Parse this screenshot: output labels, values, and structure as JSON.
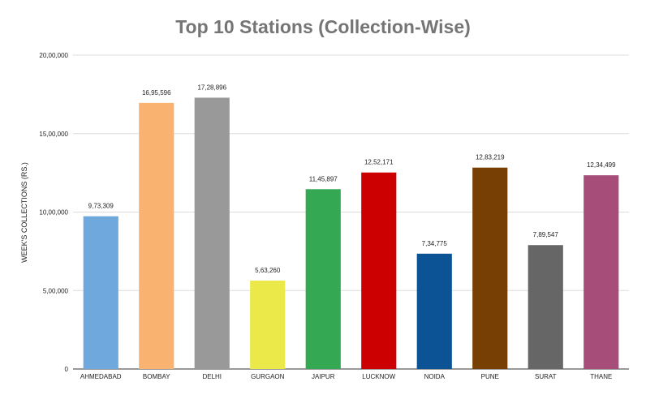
{
  "chart_data": {
    "type": "bar",
    "title": "Top 10 Stations (Collection-Wise)",
    "xlabel": "",
    "ylabel": "WEEK'S COLLECTIONS (RS.)",
    "ylim": [
      0,
      2000000
    ],
    "yticks": [
      0,
      500000,
      1000000,
      1500000,
      2000000
    ],
    "ytick_labels": [
      "0",
      "5,00,000",
      "10,00,000",
      "15,00,000",
      "20,00,000"
    ],
    "grid": true,
    "legend": "none",
    "categories": [
      "AHMEDABAD",
      "BOMBAY",
      "DELHI",
      "GURGAON",
      "JAIPUR",
      "LUCKNOW",
      "NOIDA",
      "PUNE",
      "SURAT",
      "THANE"
    ],
    "values": [
      973309,
      1695596,
      1728896,
      563260,
      1145897,
      1252171,
      734775,
      1283219,
      789547,
      1234499
    ],
    "value_labels": [
      "9,73,309",
      "16,95,596",
      "17,28,896",
      "5,63,260",
      "11,45,897",
      "12,52,171",
      "7,34,775",
      "12,83,219",
      "7,89,547",
      "12,34,499"
    ],
    "colors": [
      "#6fa8dc",
      "#f9b26f",
      "#999999",
      "#ebe84a",
      "#34a853",
      "#cc0000",
      "#0b5394",
      "#783f04",
      "#666666",
      "#a64d79"
    ]
  }
}
